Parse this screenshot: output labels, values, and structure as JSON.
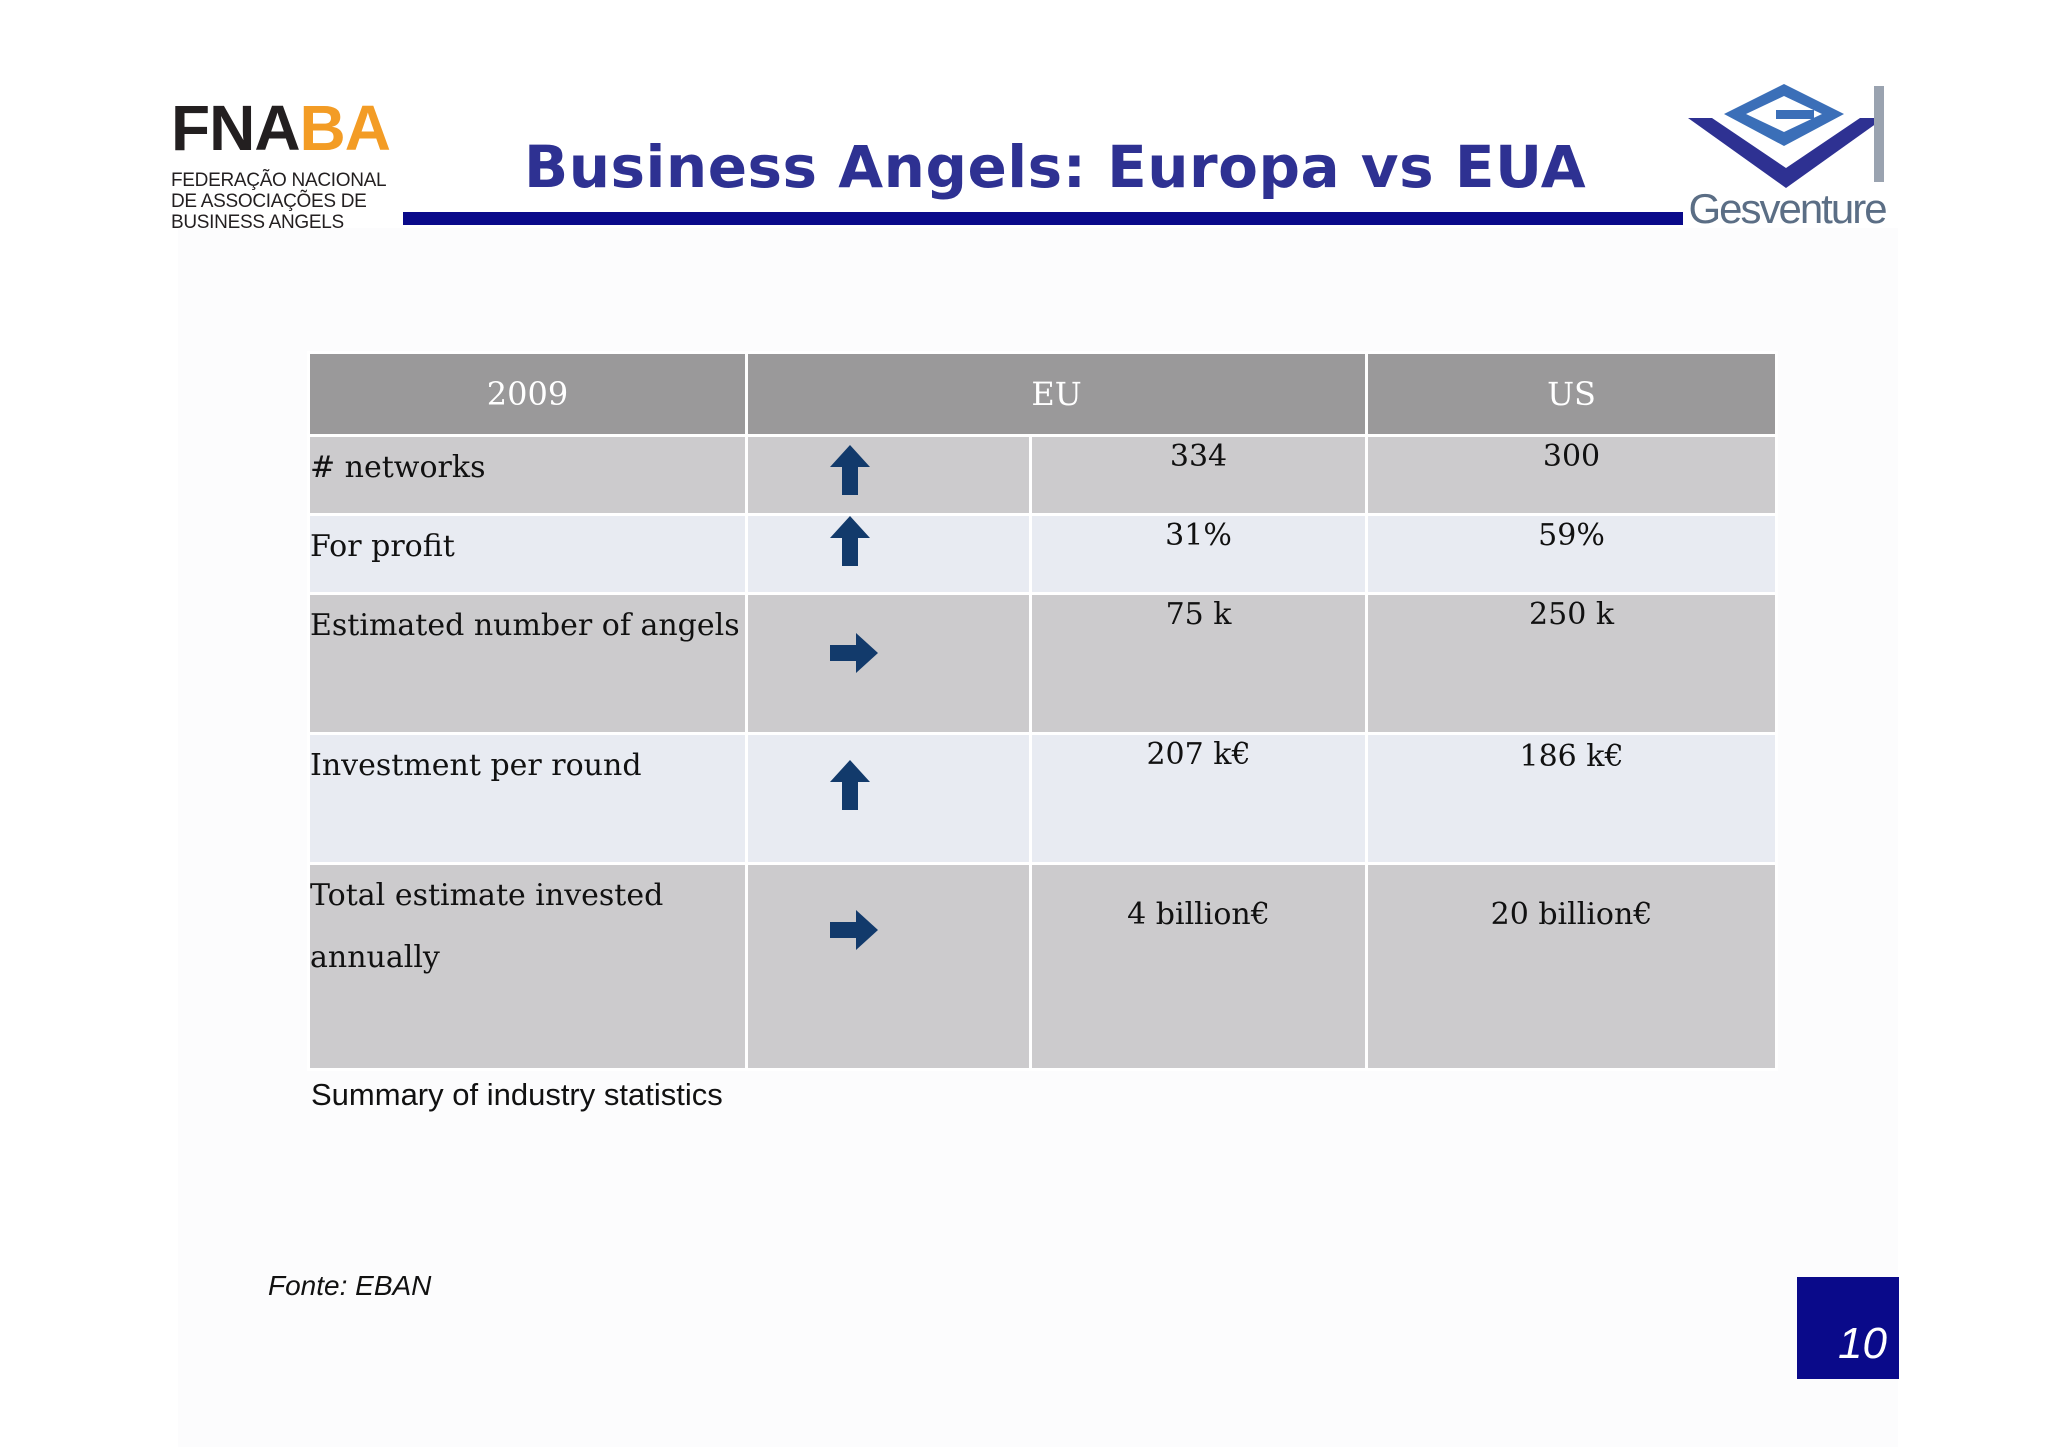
{
  "header": {
    "fnaba_logo": {
      "name_part1": "FNA",
      "name_part2": "BA",
      "subtitle_lines": [
        "FEDERAÇÃO NACIONAL",
        "DE ASSOCIAÇÕES DE",
        "BUSINESS ANGELS"
      ]
    },
    "title": "Business Angels:  Europa vs EUA",
    "partner_logo": {
      "wordmark": "Gesventure"
    }
  },
  "colors": {
    "title": "#2e3192",
    "rule": "#0a0a8a",
    "header_row": "#9a999a",
    "row_dark": "#cccbcd",
    "row_light": "#e8ebf2",
    "arrow": "#123a6b",
    "fnaba_orange": "#f39c25"
  },
  "table": {
    "headers": [
      "2009",
      "EU",
      "US"
    ],
    "rows": [
      {
        "label": "# networks",
        "trend_icon": "arrow-up-icon",
        "eu": "334",
        "us": "300"
      },
      {
        "label": "For profit",
        "trend_icon": "arrow-up-icon",
        "eu": "31%",
        "us": "59%"
      },
      {
        "label": "Estimated number of angels",
        "trend_icon": "arrow-right-icon",
        "eu": "75 k",
        "us": "250 k"
      },
      {
        "label": "Investment per round",
        "trend_icon": "arrow-up-icon",
        "eu": "207 k€",
        "us": "186 k€"
      },
      {
        "label": "Total estimate invested annually",
        "trend_icon": "arrow-right-icon",
        "eu": "4 billion€",
        "us": "20 billion€"
      }
    ]
  },
  "caption": "Summary of industry statistics",
  "source": "Fonte: EBAN",
  "page_number": "10"
}
